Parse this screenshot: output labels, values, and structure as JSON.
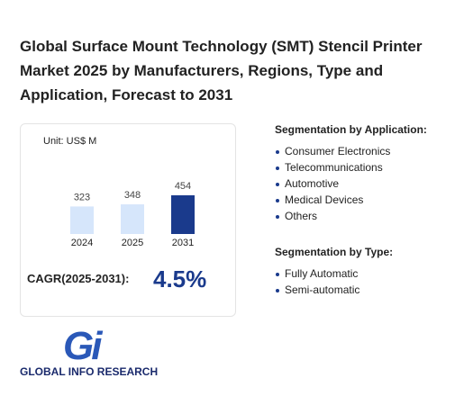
{
  "title": [
    "Global Surface Mount Technology (SMT) Stencil Printer",
    "Market 2025 by Manufacturers, Regions, Type and",
    "Application, Forecast to 2031"
  ],
  "chart_data": {
    "type": "bar",
    "unit": "Unit: US$ M",
    "categories": [
      "2024",
      "2025",
      "2031"
    ],
    "values": [
      323,
      348,
      454
    ],
    "colors": [
      "#d6e6fb",
      "#d6e6fb",
      "#1a3a8c"
    ]
  },
  "cagr": {
    "label": "CAGR(2025-2031):",
    "value": "4.5%"
  },
  "segments": [
    {
      "heading": "Segmentation by Application:",
      "items": [
        "Consumer Electronics",
        "Telecommunications",
        "Automotive",
        "Medical Devices",
        "Others"
      ]
    },
    {
      "heading": "Segmentation by Type:",
      "items": [
        "Fully Automatic",
        "Semi-automatic"
      ]
    }
  ],
  "logo": {
    "mark": "Gi",
    "text": "GLOBAL INFO RESEARCH"
  }
}
